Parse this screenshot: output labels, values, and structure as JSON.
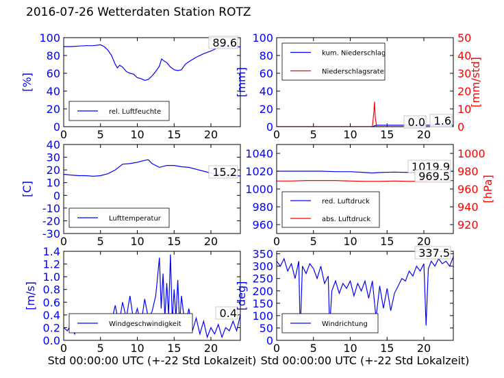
{
  "title": "2016-07-26 Wetterdaten Station ROTZ ",
  "xlabel": "Std 00:00:00 UTC (+-22 Std Lokalzeit)",
  "colors": {
    "left_axis": "#0000ff",
    "right_axis": "#ff0000",
    "series_blue": "#0000ff",
    "series_red": "#ff0000"
  },
  "chart_data": [
    {
      "type": "line",
      "id": "humidity",
      "ylabel": "[%]",
      "xlim": [
        0,
        24
      ],
      "ylim": [
        0,
        100
      ],
      "xticks": [
        0,
        5,
        10,
        15,
        20
      ],
      "yticks": [
        0,
        20,
        40,
        60,
        80,
        100
      ],
      "legend_placement": "lower-left",
      "annotation": "89.6",
      "series": [
        {
          "name": "rel. Luftfeuchte",
          "color": "#0000ff",
          "x": [
            0,
            1,
            2,
            3,
            4,
            5,
            5.5,
            6,
            6.5,
            7,
            7.3,
            7.6,
            8,
            8.5,
            9,
            9.5,
            10,
            10.5,
            11,
            11.5,
            12,
            12.5,
            13,
            13.3,
            13.6,
            14,
            14.5,
            15,
            15.5,
            16,
            16.5,
            17,
            18,
            19,
            20,
            21,
            22,
            23,
            24
          ],
          "y": [
            90,
            90,
            90.5,
            91,
            91,
            92,
            90,
            86,
            80,
            70,
            66,
            69,
            67,
            62,
            60,
            59,
            55,
            54,
            52,
            53,
            57,
            62,
            68,
            76,
            74,
            72,
            67,
            64,
            63,
            64,
            70,
            73,
            78,
            82,
            85,
            89,
            90,
            90,
            89.6
          ]
        }
      ]
    },
    {
      "type": "line",
      "id": "precipitation",
      "ylabel": "[mm]",
      "ylabel_right": "[mm/std]",
      "xlim": [
        0,
        24
      ],
      "ylim": [
        0,
        100
      ],
      "ylim_right": [
        0,
        50
      ],
      "xticks": [
        0,
        5,
        10,
        15,
        20
      ],
      "yticks": [
        0,
        20,
        40,
        60,
        80,
        100
      ],
      "yticks_right": [
        0,
        10,
        20,
        30,
        40,
        50
      ],
      "legend_placement": "upper-left",
      "annotations": [
        "1.6",
        "0.0"
      ],
      "series": [
        {
          "name": "kum. Niederschlag",
          "color": "#0000ff",
          "axis": "left",
          "x": [
            0,
            13,
            13.3,
            13.5,
            24
          ],
          "y": [
            0,
            0,
            1.0,
            1.6,
            1.6
          ]
        },
        {
          "name": "Niederschlagsrate",
          "color": "#ff0000",
          "axis": "right",
          "x": [
            0,
            13,
            13.2,
            13.3,
            13.4,
            13.6,
            24
          ],
          "y": [
            0,
            0,
            8,
            14,
            5,
            0,
            0
          ]
        }
      ]
    },
    {
      "type": "line",
      "id": "temperature",
      "ylabel": "[C]",
      "xlim": [
        0,
        24
      ],
      "ylim": [
        -30,
        40
      ],
      "xticks": [
        0,
        5,
        10,
        15,
        20
      ],
      "yticks": [
        -30,
        -20,
        -10,
        0,
        10,
        20,
        30,
        40
      ],
      "legend_placement": "lower-left",
      "annotation": "15.2",
      "series": [
        {
          "name": "Lufttemperatur",
          "color": "#0000ff",
          "x": [
            0,
            1,
            2,
            3,
            4,
            5,
            6,
            7,
            8,
            9,
            10,
            11,
            11.5,
            12,
            13,
            14,
            15,
            16,
            17,
            18,
            19,
            20,
            21,
            22,
            23,
            24
          ],
          "y": [
            16.5,
            16,
            15.5,
            15.5,
            15,
            15.5,
            17,
            20,
            24.5,
            25,
            26,
            27.5,
            28,
            25,
            22,
            23.5,
            23.5,
            22.5,
            22,
            20.5,
            19,
            17.5,
            16.5,
            16,
            16,
            15.2
          ]
        }
      ]
    },
    {
      "type": "line",
      "id": "pressure",
      "ylabel": "",
      "ylabel_right": "[hPa]",
      "xlim": [
        0,
        24
      ],
      "ylim": [
        950,
        1050
      ],
      "ylim_right": [
        910,
        1010
      ],
      "xticks": [
        0,
        5,
        10,
        15,
        20
      ],
      "yticks": [
        960,
        980,
        1000,
        1020,
        1040
      ],
      "yticks_right": [
        920,
        940,
        960,
        980,
        1000
      ],
      "legend_placement": "lower-left",
      "annotations": [
        "1019.9",
        "969.5"
      ],
      "series": [
        {
          "name": "red. Luftdruck",
          "color": "#0000ff",
          "axis": "left",
          "x": [
            0,
            2,
            4,
            6,
            8,
            10,
            12,
            13,
            14,
            16,
            18,
            20,
            22,
            24
          ],
          "y": [
            1020,
            1020,
            1020,
            1020,
            1019.5,
            1019.5,
            1018.5,
            1018,
            1018.5,
            1019,
            1018.5,
            1019.5,
            1020,
            1019.9
          ]
        },
        {
          "name": "abs. Luftdruck",
          "color": "#ff0000",
          "axis": "right",
          "x": [
            0,
            2,
            4,
            6,
            8,
            10,
            12,
            13,
            14,
            16,
            18,
            20,
            22,
            24
          ],
          "y": [
            969,
            969,
            969.5,
            969.5,
            969.5,
            969,
            968.5,
            968.5,
            968.5,
            969,
            968.5,
            969,
            969.5,
            969.5
          ]
        }
      ]
    },
    {
      "type": "line",
      "id": "wind_speed",
      "ylabel": "[m/s]",
      "xlim": [
        0,
        24
      ],
      "ylim": [
        0,
        1.4
      ],
      "xticks": [
        0,
        5,
        10,
        15,
        20
      ],
      "yticks": [
        0.0,
        0.2,
        0.4,
        0.6,
        0.8,
        1.0,
        1.2,
        1.4
      ],
      "legend_placement": "lower-left",
      "annotation": "0.4",
      "series": [
        {
          "name": "Windgeschwindigkeit",
          "color": "#0000ff",
          "x": [
            0,
            0.5,
            1,
            1.5,
            2,
            2.5,
            3,
            3.5,
            4,
            4.5,
            5,
            5.5,
            6,
            6.5,
            7,
            7.5,
            8,
            8.5,
            9,
            9.5,
            10,
            10.5,
            11,
            11.5,
            12,
            12.5,
            13,
            13.25,
            13.5,
            13.75,
            14,
            14.25,
            14.5,
            14.75,
            15,
            15.25,
            15.5,
            15.75,
            16,
            16.5,
            17,
            17.5,
            18,
            18.5,
            19,
            19.5,
            20,
            20.5,
            21,
            21.5,
            22,
            22.5,
            23,
            23.5,
            24
          ],
          "y": [
            0.2,
            0.15,
            0.25,
            0.1,
            0.3,
            0.2,
            0.35,
            0.15,
            0.3,
            0.2,
            0.35,
            0.25,
            0.2,
            0.3,
            0.55,
            0.25,
            0.6,
            0.35,
            0.7,
            0.3,
            0.5,
            0.25,
            0.65,
            0.35,
            0.45,
            0.7,
            1.3,
            0.5,
            1.05,
            0.35,
            0.9,
            0.4,
            1.35,
            0.3,
            0.8,
            0.35,
            0.95,
            0.25,
            0.7,
            0.2,
            0.5,
            0.15,
            0.35,
            0.1,
            0.3,
            0.05,
            0.2,
            0.1,
            0.25,
            0.05,
            0.2,
            0.15,
            0.3,
            0.15,
            0.4
          ]
        }
      ]
    },
    {
      "type": "line",
      "id": "wind_direction",
      "ylabel": "[deg]",
      "xlim": [
        0,
        24
      ],
      "ylim": [
        0,
        360
      ],
      "xticks": [
        0,
        5,
        10,
        15,
        20
      ],
      "yticks": [
        0,
        50,
        100,
        150,
        200,
        250,
        300,
        350
      ],
      "legend_placement": "lower-left",
      "annotation": "337.5",
      "series": [
        {
          "name": "Windrichtung",
          "color": "#0000ff",
          "x": [
            0,
            0.5,
            1,
            1.5,
            2,
            2.5,
            3,
            3.2,
            3.5,
            4,
            4.5,
            5,
            5.5,
            6,
            6.5,
            7,
            7.2,
            7.5,
            8,
            8.5,
            9,
            9.5,
            10,
            10.5,
            11,
            11.5,
            12,
            12.5,
            13,
            13.5,
            14,
            14.5,
            15,
            15.5,
            16,
            16.5,
            17,
            17.5,
            18,
            18.5,
            19,
            19.5,
            20,
            20.3,
            20.6,
            21,
            21.5,
            22,
            22.5,
            23,
            23.5,
            24
          ],
          "y": [
            320,
            300,
            330,
            280,
            310,
            250,
            320,
            30,
            300,
            270,
            310,
            290,
            250,
            300,
            230,
            260,
            50,
            200,
            240,
            190,
            230,
            210,
            240,
            180,
            230,
            200,
            240,
            170,
            240,
            90,
            220,
            130,
            210,
            120,
            190,
            220,
            250,
            240,
            280,
            260,
            300,
            280,
            310,
            60,
            290,
            320,
            300,
            330,
            310,
            320,
            300,
            337.5
          ]
        }
      ]
    }
  ]
}
